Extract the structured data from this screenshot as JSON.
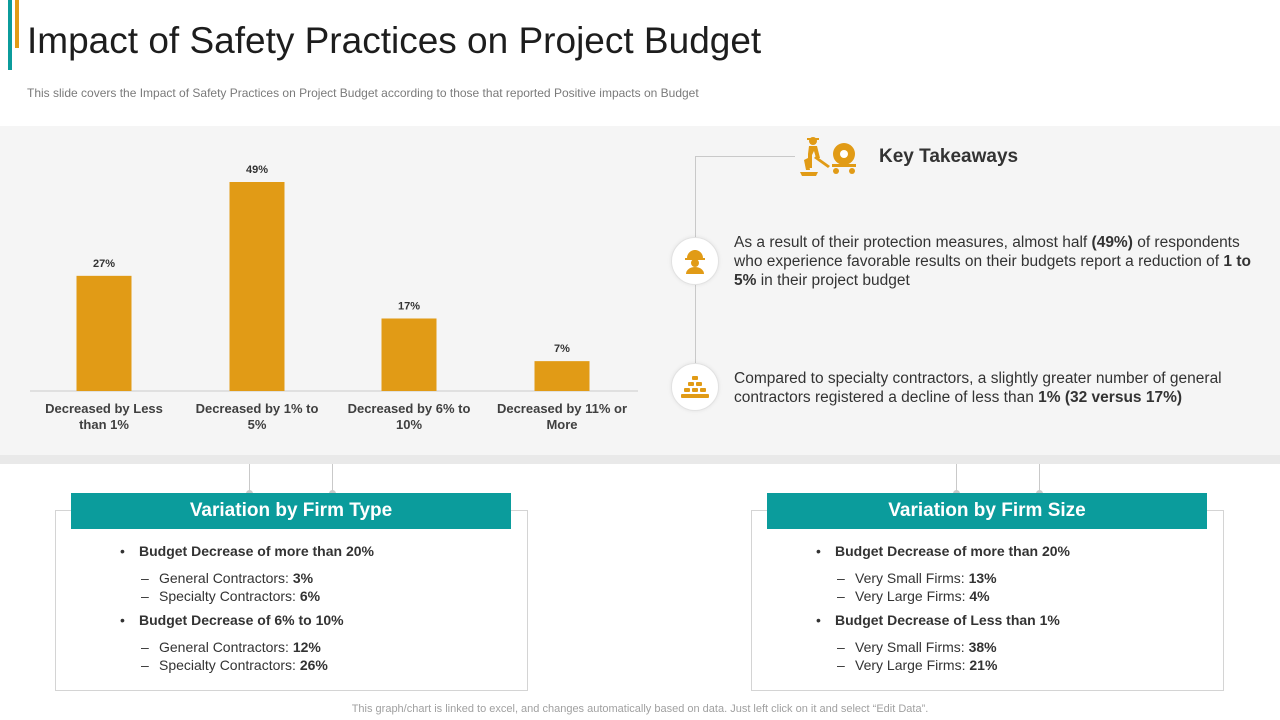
{
  "header": {
    "title": "Impact of Safety Practices on Project Budget",
    "subtitle": "This slide covers the Impact of Safety Practices on Project Budget according to those that reported Positive impacts on Budget"
  },
  "colors": {
    "bar": "#e19b16",
    "accent": "#0b9c9c",
    "icon": "#e19b16"
  },
  "chart_data": {
    "type": "bar",
    "categories": [
      "Decreased by Less than 1%",
      "Decreased by 1% to 5%",
      "Decreased by 6% to 10%",
      "Decreased by 11% or More"
    ],
    "category_lines": [
      [
        "Decreased by Less",
        "than 1%"
      ],
      [
        "Decreased by 1% to",
        "5%"
      ],
      [
        "Decreased by 6% to",
        "10%"
      ],
      [
        "Decreased by 11% or",
        "More"
      ]
    ],
    "values": [
      27,
      49,
      17,
      7
    ],
    "value_labels": [
      "27%",
      "49%",
      "17%",
      "7%"
    ],
    "ylim": [
      0,
      49
    ],
    "grid": false,
    "legend": false
  },
  "takeaways": {
    "title": "Key Takeaways",
    "title_icon": "worker-with-cement-mixer-icon",
    "items": [
      {
        "icon": "worker-helmet-icon",
        "pre": "As a result of their protection measures, almost half ",
        "b1": "(49%)",
        "mid": " of respondents who experience favorable results on their budgets report a reduction of ",
        "b2": "1 to 5%",
        "post": " in their project budget"
      },
      {
        "icon": "brick-stack-icon",
        "pre": "Compared to specialty contractors, a slightly greater number of general contractors registered a decline of less than ",
        "b1": "1% (32 versus 17%)",
        "mid": "",
        "b2": "",
        "post": ""
      }
    ]
  },
  "firm_type": {
    "title": "Variation by Firm Type",
    "bullet1": "Budget Decrease of more than 20%",
    "b1_item1_label": "General Contractors: ",
    "b1_item1_value": "3%",
    "b1_item2_label": "Specialty Contractors: ",
    "b1_item2_value": "6%",
    "bullet2": "Budget Decrease of 6% to 10%",
    "b2_item1_label": "General Contractors: ",
    "b2_item1_value": "12%",
    "b2_item2_label": "Specialty Contractors: ",
    "b2_item2_value": "26%"
  },
  "firm_size": {
    "title": "Variation by Firm Size",
    "bullet1": "Budget Decrease of more than 20%",
    "b1_item1_label": "Very Small Firms: ",
    "b1_item1_value": "13%",
    "b1_item2_label": "Very Large Firms: ",
    "b1_item2_value": "4%",
    "bullet2": "Budget Decrease of Less than 1%",
    "b2_item1_label": "Very Small Firms: ",
    "b2_item1_value": "38%",
    "b2_item2_label": "Very Large Firms: ",
    "b2_item2_value": "21%"
  },
  "symbols": {
    "bullet": "•",
    "dash": "–"
  },
  "footer": "This graph/chart is linked to excel, and changes automatically based on data. Just left click on it and select “Edit Data”."
}
